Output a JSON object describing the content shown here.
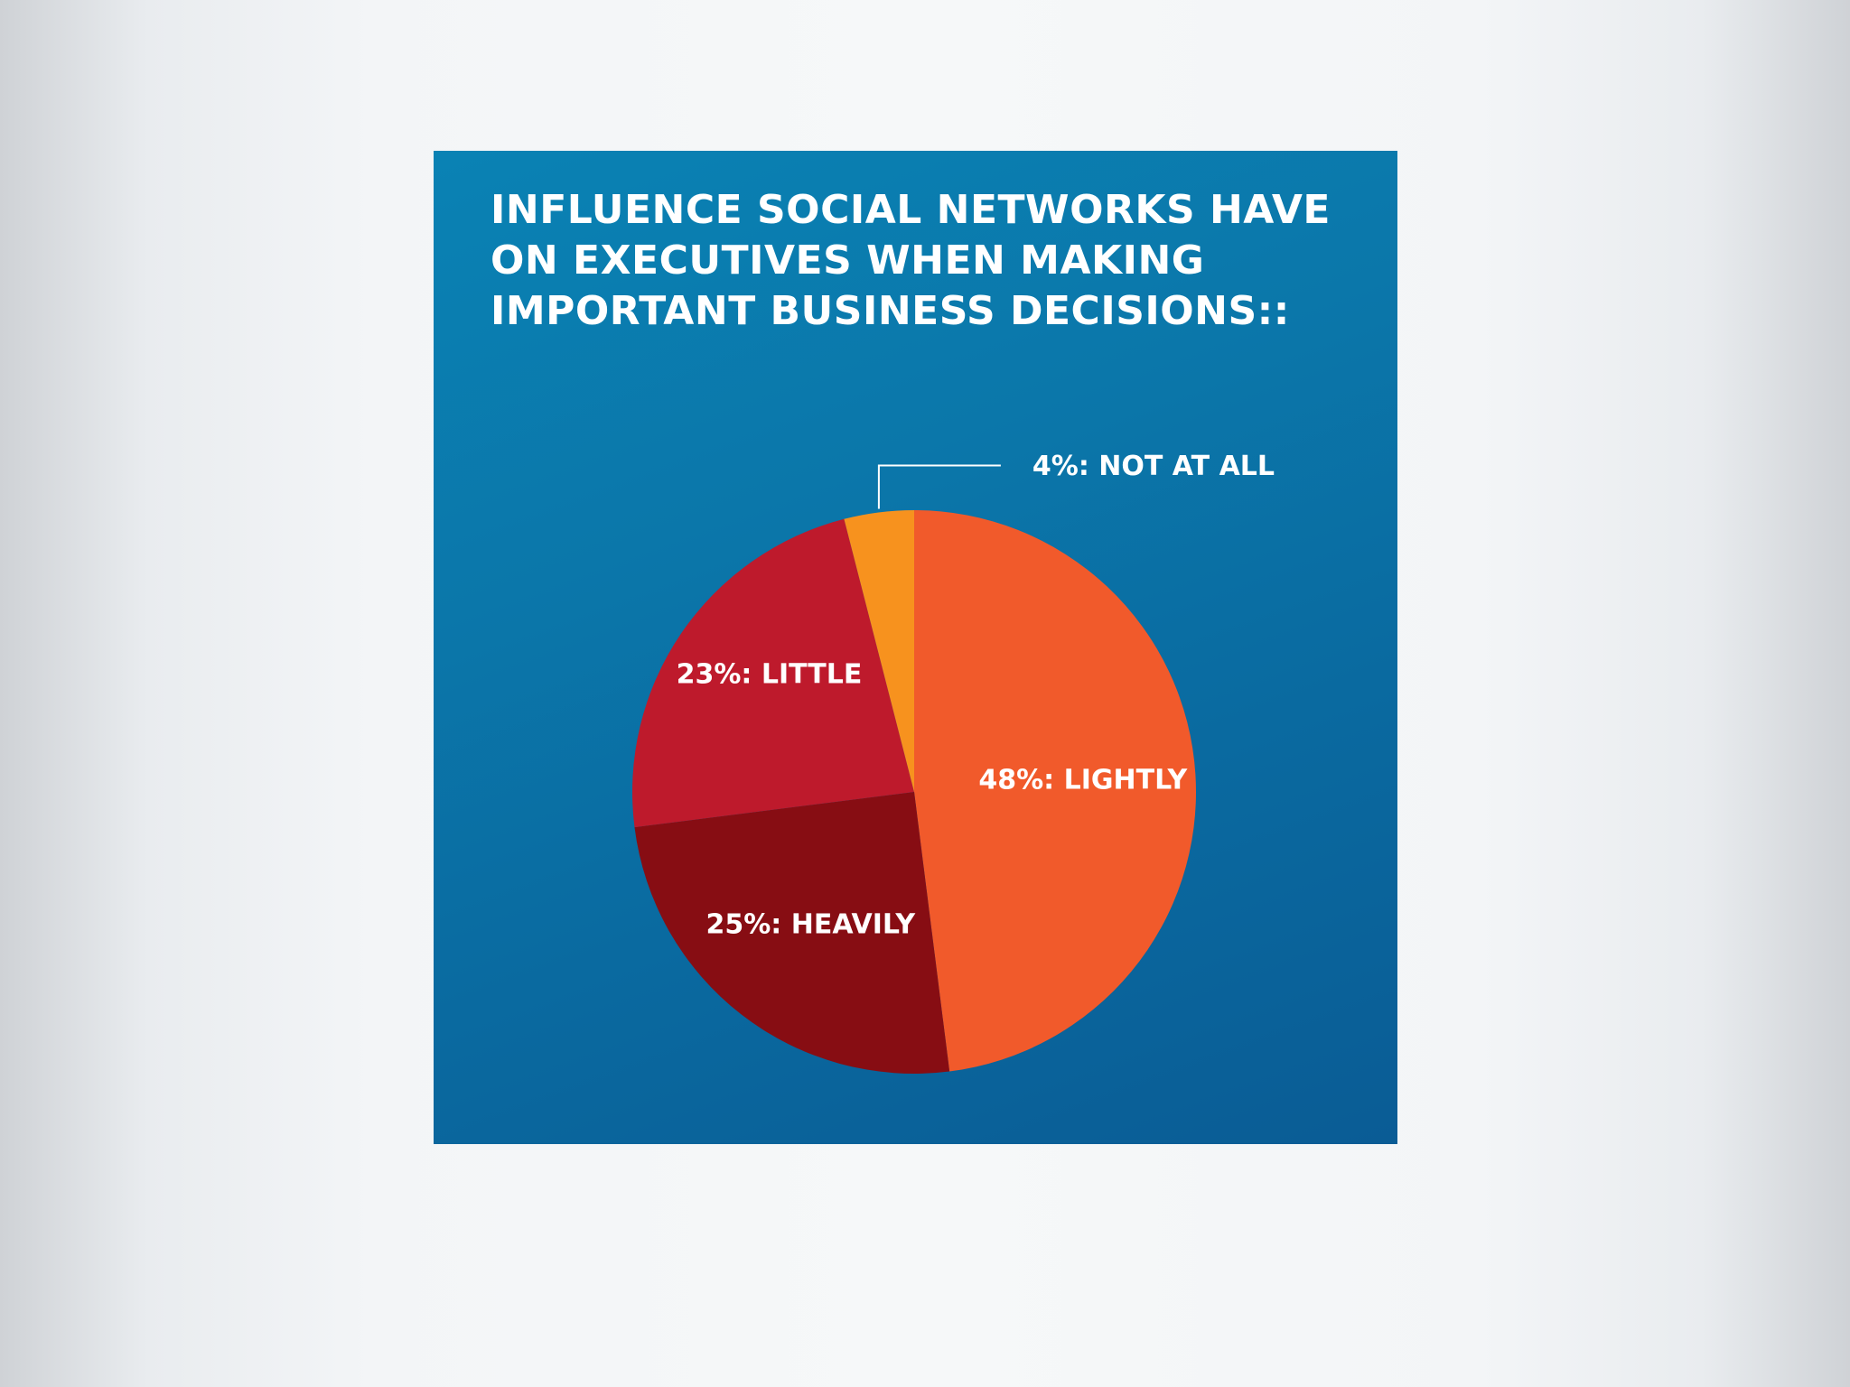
{
  "chart_data": {
    "type": "pie",
    "title": "INFLUENCE SOCIAL NETWORKS HAVE ON EXECUTIVES WHEN MAKING IMPORTANT BUSINESS DECISIONS::",
    "slices": [
      {
        "label": "LIGHTLY",
        "value": 48,
        "text": "48%: LIGHTLY",
        "color": "#f15a2b"
      },
      {
        "label": "HEAVILY",
        "value": 25,
        "text": "25%: HEAVILY",
        "color": "#870d13"
      },
      {
        "label": "LITTLE",
        "value": 23,
        "text": "23%: LITTLE",
        "color": "#be1a2c"
      },
      {
        "label": "NOT AT ALL",
        "value": 4,
        "text": "4%: NOT AT ALL",
        "color": "#f7921e"
      }
    ],
    "start_angle": "12 o'clock",
    "direction": "clockwise",
    "legend": "none",
    "background_color": "#0a76a9"
  }
}
